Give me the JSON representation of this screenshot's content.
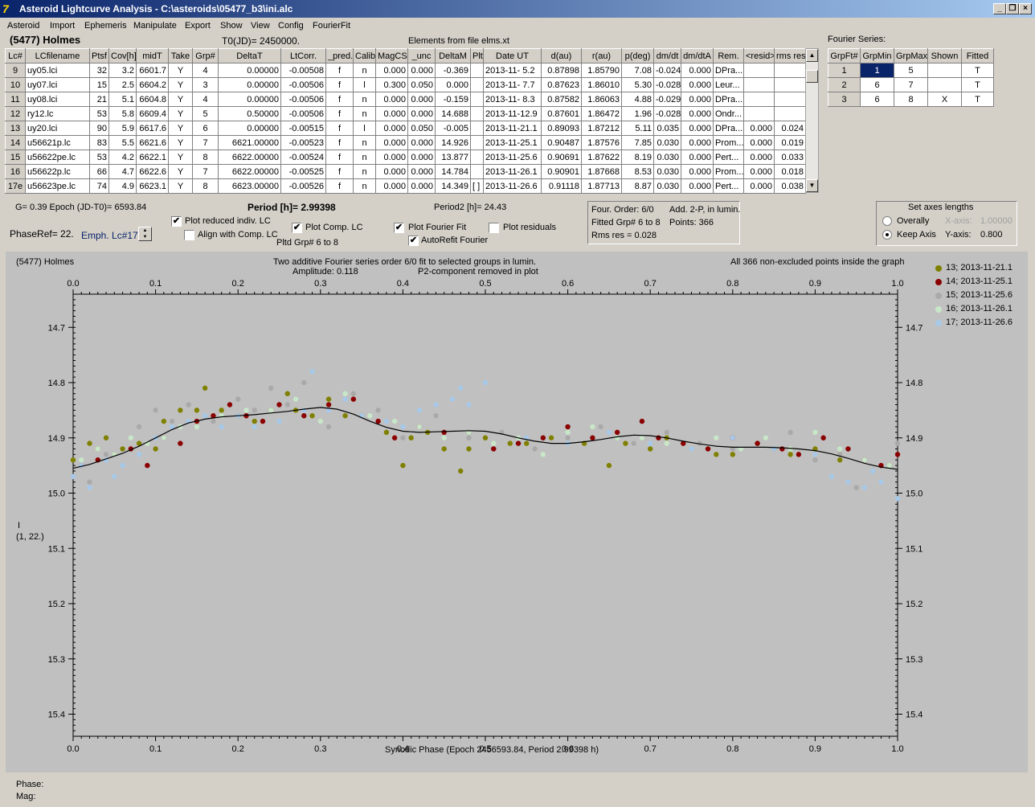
{
  "window": {
    "title": "Asteroid Lightcurve Analysis - C:\\asteroids\\05477_b3\\ini.alc",
    "icon_glyph": "7"
  },
  "menu": [
    "Asteroid",
    "Import",
    "Ephemeris",
    "Manipulate",
    "Export",
    "Show",
    "View",
    "Config",
    "FourierFit"
  ],
  "header": {
    "asteroid_name": "(5477) Holmes",
    "t0": "T0(JD)= 2450000.",
    "elements_file": "Elements from file elms.xt",
    "fourier_series_label": "Fourier Series:"
  },
  "lc_table": {
    "columns": [
      "Lc#",
      "LCfilename",
      "Ptsf",
      "Cov[h]",
      "midT",
      "Take",
      "Grp#",
      "DeltaT",
      "LtCorr.",
      "_pred.",
      "Calib.",
      "MagCS",
      "_unc",
      "DeltaM",
      "Plt",
      "Date UT",
      "d(au)",
      "r(au)",
      "p(deg)",
      "dm/dt",
      "dm/dtA",
      "Rem.",
      "<resid>",
      "rms res"
    ],
    "rows": [
      [
        "9",
        "uy05.lci",
        "32",
        "3.2",
        "6601.7",
        "Y",
        "4",
        "0.00000",
        "-0.00508",
        "f",
        "n",
        "0.000",
        "0.000",
        "-0.369",
        "",
        "2013-11- 5.2",
        "0.87898",
        "1.85790",
        "7.08",
        "-0.024",
        "0.000",
        "DPra...",
        "",
        ""
      ],
      [
        "10",
        "uy07.lci",
        "15",
        "2.5",
        "6604.2",
        "Y",
        "3",
        "0.00000",
        "-0.00506",
        "f",
        "l",
        "0.300",
        "0.050",
        "0.000",
        "",
        "2013-11- 7.7",
        "0.87623",
        "1.86010",
        "5.30",
        "-0.028",
        "0.000",
        "Leur...",
        "",
        ""
      ],
      [
        "11",
        "uy08.lci",
        "21",
        "5.1",
        "6604.8",
        "Y",
        "4",
        "0.00000",
        "-0.00506",
        "f",
        "n",
        "0.000",
        "0.000",
        "-0.159",
        "",
        "2013-11- 8.3",
        "0.87582",
        "1.86063",
        "4.88",
        "-0.029",
        "0.000",
        "DPra...",
        "",
        ""
      ],
      [
        "12",
        "ry12.lc",
        "53",
        "5.8",
        "6609.4",
        "Y",
        "5",
        "0.50000",
        "-0.00506",
        "f",
        "n",
        "0.000",
        "0.000",
        "14.688",
        "",
        "2013-11-12.9",
        "0.87601",
        "1.86472",
        "1.96",
        "-0.028",
        "0.000",
        "Ondr...",
        "",
        ""
      ],
      [
        "13",
        "uy20.lci",
        "90",
        "5.9",
        "6617.6",
        "Y",
        "6",
        "0.00000",
        "-0.00515",
        "f",
        "l",
        "0.000",
        "0.050",
        "-0.005",
        "",
        "2013-11-21.1",
        "0.89093",
        "1.87212",
        "5.11",
        "0.035",
        "0.000",
        "DPra...",
        "0.000",
        "0.024"
      ],
      [
        "14",
        "u56621p.lc",
        "83",
        "5.5",
        "6621.6",
        "Y",
        "7",
        "6621.00000",
        "-0.00523",
        "f",
        "n",
        "0.000",
        "0.000",
        "14.926",
        "",
        "2013-11-25.1",
        "0.90487",
        "1.87576",
        "7.85",
        "0.030",
        "0.000",
        "Prom...",
        "0.000",
        "0.019"
      ],
      [
        "15",
        "u56622pe.lc",
        "53",
        "4.2",
        "6622.1",
        "Y",
        "8",
        "6622.00000",
        "-0.00524",
        "f",
        "n",
        "0.000",
        "0.000",
        "13.877",
        "",
        "2013-11-25.6",
        "0.90691",
        "1.87622",
        "8.19",
        "0.030",
        "0.000",
        "Pert...",
        "0.000",
        "0.033"
      ],
      [
        "16",
        "u56622p.lc",
        "66",
        "4.7",
        "6622.6",
        "Y",
        "7",
        "6622.00000",
        "-0.00525",
        "f",
        "n",
        "0.000",
        "0.000",
        "14.784",
        "",
        "2013-11-26.1",
        "0.90901",
        "1.87668",
        "8.53",
        "0.030",
        "0.000",
        "Prom...",
        "0.000",
        "0.018"
      ],
      [
        "17e",
        "u56623pe.lc",
        "74",
        "4.9",
        "6623.1",
        "Y",
        "8",
        "6623.00000",
        "-0.00526",
        "f",
        "n",
        "0.000",
        "0.000",
        "14.349",
        "[ ]",
        "2013-11-26.6",
        "0.91118",
        "1.87713",
        "8.87",
        "0.030",
        "0.000",
        "Pert...",
        "0.000",
        "0.038"
      ]
    ]
  },
  "fourier_table": {
    "columns": [
      "GrpFt#",
      "GrpMin",
      "GrpMax",
      "Shown",
      "Fitted"
    ],
    "rows": [
      [
        "1",
        "1",
        "5",
        "",
        "T"
      ],
      [
        "2",
        "6",
        "7",
        "",
        "T"
      ],
      [
        "3",
        "6",
        "8",
        "X",
        "T"
      ]
    ]
  },
  "controls": {
    "g_epoch": "G= 0.39   Epoch (JD-T0)= 6593.84",
    "period": "Period [h]= 2.99398",
    "period2": "Period2 [h]= 24.43",
    "phaseref": "PhaseRef= 22.",
    "emph": "Emph. Lc#17:",
    "plot_reduced": "Plot reduced indiv. LC",
    "align_comp": "Align with Comp. LC",
    "plot_comp": "Plot Comp. LC",
    "pltd_grp": "Pltd Grp#  6  to   8",
    "plot_fourier": "Plot Fourier Fit",
    "autorefit": "AutoRefit Fourier",
    "plot_residuals": "Plot residuals",
    "checks": {
      "plot_reduced": true,
      "align_comp": false,
      "plot_comp": true,
      "plot_fourier": true,
      "autorefit": true,
      "plot_residuals": false
    }
  },
  "info_box": {
    "four_order": "Four. Order:  6/0",
    "add": "Add. 2-P, in lumin.",
    "fitted_grp": "Fitted Grp# 6 to 8",
    "points": "Points: 366",
    "rms": "Rms res     = 0.028"
  },
  "axes_box": {
    "title": "Set axes lengths",
    "overally": "Overally",
    "keep_axis": "Keep Axis",
    "x_axis_label": "X-axis:",
    "x_axis_value": "1.00000",
    "y_axis_label": "Y-axis:",
    "y_axis_value": "0.800",
    "selected": "keep_axis"
  },
  "plot": {
    "name_label": "(5477) Holmes",
    "title_line1": "Two additive Fourier series order 6/0 fit to selected groups in lumin.",
    "title_line2_a": "Amplitude: 0.118",
    "title_line2_b": "P2-component removed in plot",
    "right_note": "All 366 non-excluded points inside the graph",
    "ylabel_1": "I",
    "ylabel_2": "(1, 22.)"
  },
  "status": {
    "phase_label": "Phase:",
    "mag_label": "Mag:"
  },
  "chart_data": {
    "type": "scatter",
    "xlabel": "Synodic Phase (Epoch 2456593.84, Period 2.99398 h)",
    "ylabel": "I",
    "xlim": [
      0.0,
      1.0
    ],
    "ylim": [
      14.64,
      15.44
    ],
    "y_inverted": true,
    "x_ticks": [
      "0.0",
      "0.1",
      "0.2",
      "0.3",
      "0.4",
      "0.5",
      "0.6",
      "0.7",
      "0.8",
      "0.9",
      "1.0"
    ],
    "y_ticks": [
      "14.7",
      "14.8",
      "14.9",
      "15.0",
      "15.1",
      "15.2",
      "15.3",
      "15.4"
    ],
    "legend_position": "right",
    "series": [
      {
        "name": "13; 2013-11-21.1",
        "color": "#808000",
        "x": [
          0.0,
          0.02,
          0.03,
          0.04,
          0.06,
          0.08,
          0.1,
          0.11,
          0.13,
          0.15,
          0.16,
          0.18,
          0.2,
          0.22,
          0.24,
          0.26,
          0.27,
          0.29,
          0.31,
          0.33,
          0.35,
          0.38,
          0.4,
          0.41,
          0.43,
          0.45,
          0.47,
          0.48,
          0.5,
          0.53,
          0.55,
          0.58,
          0.62,
          0.65,
          0.67,
          0.7,
          0.72,
          0.75,
          0.78,
          0.8,
          0.83,
          0.85,
          0.87,
          0.9,
          0.93,
          0.96,
          0.99
        ],
        "y": [
          14.94,
          14.91,
          14.92,
          14.9,
          14.92,
          14.91,
          14.92,
          14.87,
          14.85,
          14.85,
          14.81,
          14.85,
          14.86,
          14.87,
          14.85,
          14.82,
          14.85,
          14.86,
          14.83,
          14.86,
          14.86,
          14.89,
          14.95,
          14.9,
          14.89,
          14.92,
          14.96,
          14.92,
          14.9,
          14.91,
          14.91,
          14.9,
          14.91,
          14.95,
          14.91,
          14.92,
          14.9,
          14.92,
          14.93,
          14.93,
          14.91,
          14.92,
          14.93,
          14.92,
          14.94,
          14.94,
          14.95
        ]
      },
      {
        "name": "14; 2013-11-25.1",
        "color": "#8b0000",
        "x": [
          0.01,
          0.03,
          0.05,
          0.07,
          0.09,
          0.11,
          0.13,
          0.15,
          0.17,
          0.19,
          0.21,
          0.23,
          0.25,
          0.28,
          0.31,
          0.34,
          0.37,
          0.39,
          0.42,
          0.45,
          0.48,
          0.51,
          0.54,
          0.57,
          0.6,
          0.63,
          0.66,
          0.69,
          0.71,
          0.74,
          0.77,
          0.8,
          0.83,
          0.86,
          0.88,
          0.91,
          0.94,
          0.96,
          0.98,
          1.0
        ],
        "y": [
          14.95,
          14.94,
          14.93,
          14.92,
          14.95,
          14.9,
          14.91,
          14.87,
          14.86,
          14.84,
          14.86,
          14.87,
          14.84,
          14.86,
          14.84,
          14.83,
          14.87,
          14.9,
          14.88,
          14.89,
          14.89,
          14.92,
          14.91,
          14.9,
          14.88,
          14.9,
          14.89,
          14.87,
          14.9,
          14.91,
          14.92,
          14.9,
          14.91,
          14.92,
          14.93,
          14.9,
          14.92,
          14.94,
          14.95,
          14.93
        ]
      },
      {
        "name": "15; 2013-11-25.6",
        "color": "#a9a9a9",
        "x": [
          0.0,
          0.02,
          0.04,
          0.06,
          0.08,
          0.1,
          0.12,
          0.14,
          0.17,
          0.2,
          0.22,
          0.24,
          0.26,
          0.28,
          0.31,
          0.34,
          0.37,
          0.4,
          0.44,
          0.48,
          0.52,
          0.56,
          0.6,
          0.64,
          0.68,
          0.72,
          0.76,
          0.8,
          0.84,
          0.87,
          0.9,
          0.93,
          0.95,
          0.97,
          1.0
        ],
        "y": [
          14.97,
          14.98,
          14.93,
          14.95,
          14.88,
          14.85,
          14.87,
          14.84,
          14.87,
          14.83,
          14.85,
          14.81,
          14.84,
          14.8,
          14.88,
          14.82,
          14.85,
          14.9,
          14.86,
          14.9,
          14.89,
          14.92,
          14.9,
          14.88,
          14.91,
          14.89,
          14.91,
          14.92,
          14.9,
          14.89,
          14.94,
          14.93,
          14.99,
          14.96,
          14.91
        ]
      },
      {
        "name": "16; 2013-11-26.1",
        "color": "#c8e6c8",
        "x": [
          0.01,
          0.03,
          0.05,
          0.07,
          0.09,
          0.11,
          0.13,
          0.15,
          0.18,
          0.21,
          0.24,
          0.27,
          0.3,
          0.33,
          0.36,
          0.39,
          0.42,
          0.45,
          0.48,
          0.51,
          0.54,
          0.57,
          0.6,
          0.63,
          0.66,
          0.69,
          0.72,
          0.75,
          0.78,
          0.81,
          0.84,
          0.87,
          0.9,
          0.93,
          0.96,
          0.99
        ],
        "y": [
          14.94,
          14.92,
          14.93,
          14.9,
          14.91,
          14.9,
          14.88,
          14.88,
          14.86,
          14.85,
          14.85,
          14.83,
          14.87,
          14.82,
          14.86,
          14.87,
          14.88,
          14.9,
          14.89,
          14.91,
          14.9,
          14.93,
          14.89,
          14.88,
          14.9,
          14.9,
          14.91,
          14.92,
          14.9,
          14.92,
          14.9,
          14.92,
          14.89,
          14.92,
          14.94,
          14.95
        ]
      },
      {
        "name": "17; 2013-11-26.6",
        "color": "#a8c8e8",
        "x": [
          0.0,
          0.01,
          0.02,
          0.04,
          0.05,
          0.06,
          0.08,
          0.1,
          0.12,
          0.14,
          0.16,
          0.18,
          0.2,
          0.22,
          0.25,
          0.28,
          0.29,
          0.31,
          0.33,
          0.35,
          0.38,
          0.4,
          0.42,
          0.44,
          0.46,
          0.47,
          0.48,
          0.5,
          0.55,
          0.6,
          0.65,
          0.7,
          0.75,
          0.8,
          0.85,
          0.9,
          0.92,
          0.94,
          0.96,
          0.97,
          0.98,
          1.0
        ],
        "y": [
          14.97,
          14.95,
          14.99,
          14.94,
          14.97,
          14.95,
          14.93,
          14.9,
          14.88,
          14.87,
          14.86,
          14.88,
          14.86,
          14.88,
          14.87,
          14.85,
          14.78,
          14.85,
          14.83,
          14.86,
          14.87,
          14.88,
          14.85,
          14.84,
          14.83,
          14.81,
          14.84,
          14.8,
          14.9,
          14.91,
          14.89,
          14.91,
          14.92,
          14.9,
          14.92,
          14.93,
          14.97,
          14.98,
          14.99,
          14.96,
          14.98,
          15.01
        ]
      }
    ],
    "fit_curve": {
      "x": [
        0.0,
        0.02,
        0.04,
        0.06,
        0.08,
        0.1,
        0.12,
        0.14,
        0.16,
        0.18,
        0.2,
        0.22,
        0.24,
        0.26,
        0.28,
        0.3,
        0.32,
        0.34,
        0.36,
        0.38,
        0.4,
        0.42,
        0.44,
        0.46,
        0.48,
        0.5,
        0.52,
        0.54,
        0.56,
        0.58,
        0.6,
        0.62,
        0.64,
        0.66,
        0.68,
        0.7,
        0.72,
        0.74,
        0.76,
        0.78,
        0.8,
        0.82,
        0.84,
        0.86,
        0.88,
        0.9,
        0.92,
        0.94,
        0.96,
        0.98,
        1.0
      ],
      "y": [
        14.955,
        14.948,
        14.938,
        14.928,
        14.915,
        14.9,
        14.885,
        14.873,
        14.866,
        14.862,
        14.86,
        14.858,
        14.855,
        14.852,
        14.848,
        14.845,
        14.848,
        14.857,
        14.87,
        14.881,
        14.888,
        14.89,
        14.889,
        14.888,
        14.887,
        14.888,
        14.893,
        14.9,
        14.906,
        14.91,
        14.91,
        14.907,
        14.903,
        14.898,
        14.895,
        14.896,
        14.9,
        14.906,
        14.911,
        14.915,
        14.917,
        14.917,
        14.917,
        14.918,
        14.92,
        14.923,
        14.929,
        14.937,
        14.946,
        14.953,
        14.957
      ]
    }
  }
}
